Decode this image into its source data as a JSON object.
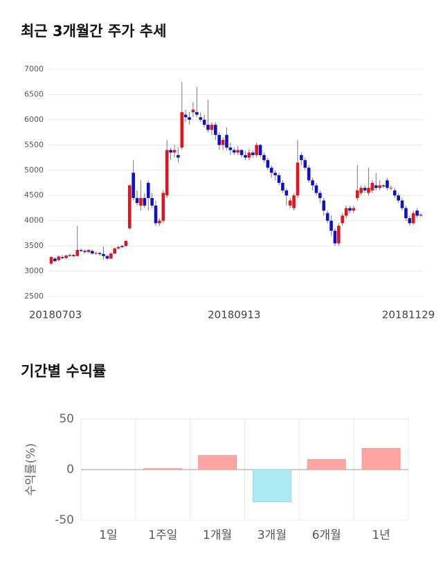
{
  "chart_data": [
    {
      "type": "candlestick",
      "title": "최근 3개월간 주가 추세",
      "categories": [
        "20180703",
        null,
        null,
        null,
        null,
        null,
        null,
        null,
        null,
        null,
        null,
        null,
        null,
        null,
        null,
        null,
        null,
        null,
        null,
        null,
        null,
        null,
        null,
        null,
        null,
        null,
        null,
        null,
        null,
        null,
        null,
        null,
        null,
        null,
        null,
        null,
        null,
        null,
        null,
        null,
        null,
        null,
        null,
        null,
        null,
        null,
        null,
        null,
        null,
        "20180913",
        null,
        null,
        null,
        null,
        null,
        null,
        null,
        null,
        null,
        null,
        null,
        null,
        null,
        null,
        null,
        null,
        null,
        null,
        null,
        null,
        null,
        null,
        null,
        null,
        null,
        null,
        null,
        null,
        null,
        null,
        null,
        null,
        null,
        null,
        null,
        null,
        null,
        null,
        null,
        null,
        null,
        null,
        null,
        null,
        null,
        null,
        null,
        null,
        null,
        "20181129"
      ],
      "open": [
        3150,
        3250,
        3220,
        3280,
        3260,
        3300,
        3320,
        3300,
        3420,
        3400,
        3380,
        3400,
        3350,
        3360,
        3340,
        3300,
        3250,
        3350,
        3450,
        3500,
        3500,
        3850,
        4950,
        4450,
        4300,
        4450,
        4750,
        4450,
        4300,
        3950,
        4000,
        4500,
        5400,
        5350,
        5300,
        5450,
        6100,
        6050,
        6150,
        6150,
        6050,
        6000,
        5900,
        5800,
        5900,
        5700,
        5500,
        5700,
        5450,
        5400,
        5350,
        5400,
        5300,
        5250,
        5350,
        5300,
        5500,
        5300,
        5200,
        5050,
        4950,
        4900,
        4750,
        4600,
        4300,
        4250,
        4500,
        5300,
        5200,
        5050,
        4800,
        4700,
        4550,
        4400,
        4150,
        4000,
        3800,
        3550,
        3950,
        4100,
        4250,
        4200,
        4450,
        4550,
        4650,
        4550,
        4600,
        4700,
        4650,
        4700,
        4800,
        4650,
        4600,
        4500,
        4400,
        4250,
        4050,
        3950,
        4200,
        4100
      ],
      "high": [
        3300,
        3280,
        3310,
        3320,
        3330,
        3350,
        3340,
        3900,
        3450,
        3430,
        3440,
        3430,
        3390,
        3380,
        3490,
        3330,
        3370,
        3470,
        3500,
        3520,
        3620,
        4720,
        5200,
        4600,
        4800,
        4550,
        4800,
        4550,
        4400,
        4050,
        4600,
        5600,
        5450,
        5500,
        5450,
        6750,
        6200,
        6150,
        6350,
        6650,
        6150,
        6100,
        6400,
        5950,
        5950,
        5750,
        5650,
        5850,
        5550,
        5450,
        5480,
        5420,
        5380,
        5420,
        5400,
        5550,
        5520,
        5350,
        5250,
        5100,
        5000,
        4950,
        4800,
        4650,
        4450,
        4550,
        5600,
        5350,
        5250,
        5100,
        4850,
        4750,
        4600,
        4450,
        4200,
        4100,
        3850,
        3950,
        4150,
        4300,
        4300,
        4300,
        5100,
        4700,
        4700,
        5050,
        4800,
        4950,
        4800,
        4720,
        4850,
        4700,
        4650,
        4550,
        4450,
        4300,
        4100,
        4200,
        4250,
        4150
      ],
      "low": [
        3120,
        3180,
        3200,
        3240,
        3250,
        3290,
        3280,
        3290,
        3380,
        3350,
        3360,
        3330,
        3320,
        3300,
        3230,
        3220,
        3240,
        3340,
        3430,
        3460,
        3480,
        3820,
        4400,
        4300,
        4200,
        4250,
        4200,
        4250,
        3900,
        3900,
        3950,
        4450,
        5200,
        5250,
        5150,
        5400,
        5950,
        5900,
        6050,
        6050,
        5950,
        5850,
        5750,
        5700,
        5600,
        5400,
        5400,
        5400,
        5300,
        5300,
        5300,
        5250,
        5200,
        5200,
        5250,
        5250,
        5250,
        5150,
        5000,
        4850,
        4800,
        4700,
        4550,
        4300,
        4250,
        4200,
        4450,
        5100,
        5000,
        4750,
        4600,
        4500,
        4350,
        4100,
        3950,
        3700,
        3500,
        3500,
        3900,
        4050,
        4150,
        4150,
        4400,
        4500,
        4550,
        4500,
        4550,
        4600,
        4600,
        4650,
        4600,
        4600,
        4450,
        4350,
        4200,
        4000,
        3900,
        3920,
        4050,
        4080
      ],
      "close": [
        3280,
        3200,
        3290,
        3260,
        3310,
        3320,
        3300,
        3420,
        3400,
        3380,
        3420,
        3350,
        3360,
        3340,
        3300,
        3250,
        3350,
        3450,
        3480,
        3480,
        3600,
        4700,
        4450,
        4350,
        4450,
        4300,
        4450,
        4300,
        3950,
        4000,
        4550,
        5400,
        5350,
        5400,
        5250,
        6150,
        6050,
        6000,
        6200,
        6100,
        6000,
        5900,
        5800,
        5900,
        5700,
        5500,
        5600,
        5450,
        5400,
        5350,
        5400,
        5300,
        5250,
        5350,
        5300,
        5500,
        5300,
        5200,
        5050,
        4950,
        4900,
        4750,
        4600,
        4500,
        4400,
        4500,
        5150,
        5200,
        5050,
        4800,
        4700,
        4550,
        4450,
        4200,
        4000,
        3800,
        3550,
        3900,
        4100,
        4250,
        4200,
        4250,
        4600,
        4650,
        4600,
        4650,
        4750,
        4650,
        4700,
        4680,
        4650,
        4650,
        4500,
        4400,
        4250,
        4050,
        3950,
        4150,
        4100,
        4120
      ],
      "up_color": "#e3121b",
      "down_color": "#1010c8",
      "ylim": [
        2500,
        7000
      ],
      "yticks": [
        2500,
        3000,
        3500,
        4000,
        4500,
        5000,
        5500,
        6000,
        6500,
        7000
      ],
      "grid": true
    },
    {
      "type": "bar",
      "title": "기간별 수익률",
      "ylabel": "수익률(%)",
      "categories": [
        "1일",
        "1주일",
        "1개월",
        "3개월",
        "6개월",
        "1년"
      ],
      "values": [
        0,
        1,
        14,
        -32,
        10,
        21
      ],
      "positive_color": "#ffa3a3",
      "negative_color": "#aeeaf3",
      "ylim": [
        -50,
        50
      ],
      "yticks": [
        -50,
        0,
        50
      ],
      "grid": true
    }
  ]
}
